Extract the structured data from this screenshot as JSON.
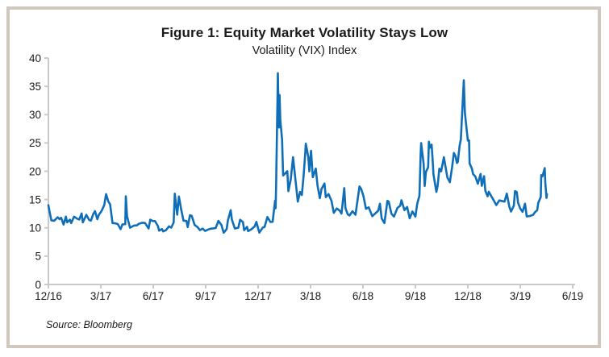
{
  "figure": {
    "source": "Source: Bloomberg"
  },
  "colors": {
    "line": "#0F6EB8",
    "axis": "#C9C9C9",
    "text": "#1A1A1A",
    "frame_border": "#D0C7BE",
    "background": "#FFFFFF"
  },
  "chart_data": {
    "type": "line",
    "title": "Figure 1: Equity Market Volatility Stays Low",
    "subtitle": "Volatility (VIX) Index",
    "source": "Source: Bloomberg",
    "x_unit": "months since 12/2016 (tick dates are month/year)",
    "x_axis": {
      "range_months": [
        0,
        30
      ],
      "ticks": [
        {
          "m": 0,
          "label": "12/16"
        },
        {
          "m": 3,
          "label": "3/17"
        },
        {
          "m": 6,
          "label": "6/17"
        },
        {
          "m": 9,
          "label": "9/17"
        },
        {
          "m": 12,
          "label": "12/17"
        },
        {
          "m": 15,
          "label": "3/18"
        },
        {
          "m": 18,
          "label": "6/18"
        },
        {
          "m": 21,
          "label": "9/18"
        },
        {
          "m": 24,
          "label": "12/18"
        },
        {
          "m": 27,
          "label": "3/19"
        },
        {
          "m": 30,
          "label": "6/19"
        }
      ]
    },
    "y_axis": {
      "min": 0,
      "max": 40,
      "step": 5,
      "tick_labels": [
        "0",
        "5",
        "10",
        "15",
        "20",
        "25",
        "30",
        "35",
        "40"
      ]
    },
    "grid": false,
    "legend": false,
    "series": [
      {
        "name": "VIX Index",
        "color": "#0F6EB8",
        "points": [
          [
            0,
            14.0
          ],
          [
            0.07,
            12.85
          ],
          [
            0.17,
            11.32
          ],
          [
            0.33,
            11.26
          ],
          [
            0.53,
            11.87
          ],
          [
            0.63,
            11.54
          ],
          [
            0.73,
            11.77
          ],
          [
            0.87,
            10.58
          ],
          [
            1.0,
            11.99
          ],
          [
            1.07,
            10.97
          ],
          [
            1.23,
            11.45
          ],
          [
            1.3,
            10.85
          ],
          [
            1.47,
            11.97
          ],
          [
            1.67,
            11.57
          ],
          [
            1.77,
            11.47
          ],
          [
            1.9,
            12.54
          ],
          [
            1.97,
            10.96
          ],
          [
            2.17,
            12.3
          ],
          [
            2.33,
            11.4
          ],
          [
            2.43,
            11.28
          ],
          [
            2.57,
            12.47
          ],
          [
            2.67,
            12.96
          ],
          [
            2.8,
            11.53
          ],
          [
            2.9,
            12.37
          ],
          [
            3.03,
            12.89
          ],
          [
            3.2,
            14.05
          ],
          [
            3.3,
            15.96
          ],
          [
            3.43,
            14.66
          ],
          [
            3.53,
            14.15
          ],
          [
            3.67,
            10.84
          ],
          [
            3.8,
            10.82
          ],
          [
            3.97,
            10.68
          ],
          [
            4.13,
            9.77
          ],
          [
            4.23,
            10.6
          ],
          [
            4.4,
            10.65
          ],
          [
            4.43,
            15.59
          ],
          [
            4.5,
            12.04
          ],
          [
            4.67,
            10.02
          ],
          [
            4.9,
            10.41
          ],
          [
            5.07,
            10.45
          ],
          [
            5.17,
            10.7
          ],
          [
            5.37,
            10.9
          ],
          [
            5.53,
            10.86
          ],
          [
            5.73,
            9.9
          ],
          [
            5.83,
            11.44
          ],
          [
            5.97,
            11.22
          ],
          [
            6.1,
            11.19
          ],
          [
            6.27,
            10.3
          ],
          [
            6.33,
            9.51
          ],
          [
            6.5,
            9.79
          ],
          [
            6.57,
            9.36
          ],
          [
            6.73,
            9.6
          ],
          [
            6.9,
            10.26
          ],
          [
            7.03,
            10.03
          ],
          [
            7.17,
            10.96
          ],
          [
            7.23,
            16.04
          ],
          [
            7.37,
            12.33
          ],
          [
            7.47,
            15.55
          ],
          [
            7.6,
            13.19
          ],
          [
            7.73,
            11.28
          ],
          [
            7.9,
            11.22
          ],
          [
            7.97,
            10.13
          ],
          [
            8.1,
            12.23
          ],
          [
            8.2,
            12.12
          ],
          [
            8.37,
            10.5
          ],
          [
            8.53,
            10.15
          ],
          [
            8.67,
            9.59
          ],
          [
            8.83,
            9.87
          ],
          [
            8.97,
            9.45
          ],
          [
            9.1,
            9.65
          ],
          [
            9.27,
            9.85
          ],
          [
            9.43,
            9.91
          ],
          [
            9.57,
            9.97
          ],
          [
            9.73,
            11.23
          ],
          [
            9.9,
            10.5
          ],
          [
            10.03,
            9.14
          ],
          [
            10.2,
            9.78
          ],
          [
            10.27,
            11.29
          ],
          [
            10.43,
            13.13
          ],
          [
            10.5,
            11.43
          ],
          [
            10.67,
            9.88
          ],
          [
            10.87,
            10.03
          ],
          [
            10.97,
            11.43
          ],
          [
            11.13,
            11.02
          ],
          [
            11.2,
            9.58
          ],
          [
            11.37,
            10.18
          ],
          [
            11.43,
            9.42
          ],
          [
            11.6,
            9.72
          ],
          [
            11.8,
            10.25
          ],
          [
            11.9,
            11.04
          ],
          [
            12.07,
            9.15
          ],
          [
            12.27,
            10.08
          ],
          [
            12.37,
            10.16
          ],
          [
            12.53,
            11.91
          ],
          [
            12.7,
            11.03
          ],
          [
            12.83,
            11.08
          ],
          [
            12.97,
            14.79
          ],
          [
            13.0,
            13.47
          ],
          [
            13.03,
            17.31
          ],
          [
            13.13,
            37.32
          ],
          [
            13.17,
            29.98
          ],
          [
            13.2,
            27.73
          ],
          [
            13.23,
            33.46
          ],
          [
            13.27,
            29.06
          ],
          [
            13.37,
            25.61
          ],
          [
            13.43,
            19.26
          ],
          [
            13.5,
            19.46
          ],
          [
            13.67,
            20.02
          ],
          [
            13.73,
            16.49
          ],
          [
            13.87,
            18.59
          ],
          [
            14.0,
            22.47
          ],
          [
            14.13,
            18.73
          ],
          [
            14.27,
            14.64
          ],
          [
            14.4,
            16.35
          ],
          [
            14.5,
            15.8
          ],
          [
            14.6,
            19.02
          ],
          [
            14.7,
            23.34
          ],
          [
            14.73,
            24.87
          ],
          [
            14.87,
            22.5
          ],
          [
            14.93,
            19.97
          ],
          [
            15.03,
            23.62
          ],
          [
            15.13,
            18.94
          ],
          [
            15.3,
            20.47
          ],
          [
            15.4,
            17.41
          ],
          [
            15.53,
            15.25
          ],
          [
            15.63,
            16.88
          ],
          [
            15.8,
            17.84
          ],
          [
            15.87,
            15.41
          ],
          [
            16.03,
            15.97
          ],
          [
            16.2,
            14.75
          ],
          [
            16.33,
            12.65
          ],
          [
            16.5,
            13.42
          ],
          [
            16.67,
            13.02
          ],
          [
            16.77,
            12.53
          ],
          [
            16.93,
            17.02
          ],
          [
            17.0,
            13.46
          ],
          [
            17.13,
            12.4
          ],
          [
            17.23,
            12.18
          ],
          [
            17.4,
            12.94
          ],
          [
            17.57,
            12.31
          ],
          [
            17.8,
            17.33
          ],
          [
            17.9,
            16.85
          ],
          [
            18.03,
            15.6
          ],
          [
            18.17,
            13.37
          ],
          [
            18.33,
            13.63
          ],
          [
            18.53,
            12.06
          ],
          [
            18.73,
            12.62
          ],
          [
            18.87,
            13.03
          ],
          [
            18.97,
            14.26
          ],
          [
            19.07,
            11.64
          ],
          [
            19.23,
            10.85
          ],
          [
            19.4,
            14.78
          ],
          [
            19.47,
            14.64
          ],
          [
            19.63,
            12.49
          ],
          [
            19.77,
            11.99
          ],
          [
            19.97,
            13.53
          ],
          [
            20.13,
            13.91
          ],
          [
            20.2,
            14.88
          ],
          [
            20.37,
            13.14
          ],
          [
            20.53,
            13.68
          ],
          [
            20.67,
            11.68
          ],
          [
            20.83,
            12.89
          ],
          [
            21.0,
            12.0
          ],
          [
            21.1,
            14.22
          ],
          [
            21.23,
            15.69
          ],
          [
            21.3,
            22.96
          ],
          [
            21.33,
            24.98
          ],
          [
            21.47,
            21.3
          ],
          [
            21.53,
            17.4
          ],
          [
            21.6,
            19.89
          ],
          [
            21.73,
            20.71
          ],
          [
            21.77,
            25.23
          ],
          [
            21.83,
            24.16
          ],
          [
            21.93,
            24.7
          ],
          [
            22.0,
            21.23
          ],
          [
            22.03,
            19.51
          ],
          [
            22.2,
            16.36
          ],
          [
            22.27,
            17.36
          ],
          [
            22.37,
            20.45
          ],
          [
            22.47,
            19.98
          ],
          [
            22.63,
            22.48
          ],
          [
            22.83,
            18.9
          ],
          [
            22.97,
            18.07
          ],
          [
            23.1,
            20.74
          ],
          [
            23.2,
            23.23
          ],
          [
            23.3,
            22.64
          ],
          [
            23.37,
            21.46
          ],
          [
            23.43,
            21.63
          ],
          [
            23.53,
            24.52
          ],
          [
            23.6,
            25.58
          ],
          [
            23.67,
            30.11
          ],
          [
            23.77,
            36.07
          ],
          [
            23.83,
            30.41
          ],
          [
            23.9,
            28.34
          ],
          [
            24.0,
            25.42
          ],
          [
            24.07,
            25.45
          ],
          [
            24.1,
            21.38
          ],
          [
            24.23,
            20.47
          ],
          [
            24.3,
            19.5
          ],
          [
            24.43,
            19.07
          ],
          [
            24.57,
            17.8
          ],
          [
            24.73,
            19.52
          ],
          [
            24.8,
            17.42
          ],
          [
            24.93,
            19.13
          ],
          [
            25.0,
            16.57
          ],
          [
            25.13,
            15.57
          ],
          [
            25.2,
            16.37
          ],
          [
            25.37,
            15.43
          ],
          [
            25.47,
            14.91
          ],
          [
            25.63,
            14.02
          ],
          [
            25.8,
            14.85
          ],
          [
            25.9,
            14.78
          ],
          [
            26.1,
            14.63
          ],
          [
            26.23,
            16.05
          ],
          [
            26.37,
            13.77
          ],
          [
            26.47,
            12.88
          ],
          [
            26.63,
            13.91
          ],
          [
            26.7,
            16.48
          ],
          [
            26.8,
            16.33
          ],
          [
            26.87,
            14.46
          ],
          [
            27.0,
            13.4
          ],
          [
            27.13,
            12.82
          ],
          [
            27.27,
            14.28
          ],
          [
            27.37,
            12.01
          ],
          [
            27.53,
            12.09
          ],
          [
            27.73,
            12.28
          ],
          [
            27.83,
            12.73
          ],
          [
            27.97,
            13.12
          ],
          [
            28.03,
            14.42
          ],
          [
            28.17,
            15.44
          ],
          [
            28.2,
            19.32
          ],
          [
            28.27,
            19.1
          ],
          [
            28.4,
            20.55
          ],
          [
            28.43,
            18.06
          ],
          [
            28.5,
            15.29
          ],
          [
            28.53,
            15.96
          ]
        ]
      }
    ]
  }
}
